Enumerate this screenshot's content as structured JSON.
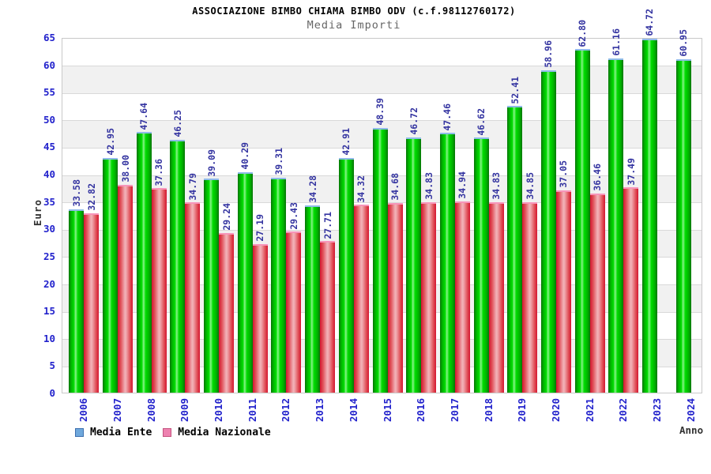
{
  "header": {
    "title": "ASSOCIAZIONE BIMBO CHIAMA BIMBO ODV (c.f.98112760172)",
    "subtitle": "Media Importi"
  },
  "axes": {
    "y_title": "Euro",
    "x_title": "Anno",
    "y_ticks": [
      0,
      5,
      10,
      15,
      20,
      25,
      30,
      35,
      40,
      45,
      50,
      55,
      60,
      65
    ]
  },
  "legend": {
    "items": [
      {
        "label": "Media Ente",
        "swatch_color": "#6fa8dc",
        "swatch_border": "#3d6fae"
      },
      {
        "label": "Media Nazionale",
        "swatch_color": "#ee82b0",
        "swatch_border": "#c4537e"
      }
    ]
  },
  "colors": {
    "bar_green_mid": "#00dc00",
    "bar_green_edge": "#067506",
    "bar_green_cap": "#8fbbe9",
    "bar_red_mid": "#efa2a9",
    "bar_red_edge": "#d41530",
    "bar_red_cap": "#f795ba",
    "tick_label_blue": "#2222cc",
    "value_label_navy": "#3333a0",
    "band_gray": "#f1f1f1",
    "grid_line": "#d9d9d9"
  },
  "chart_data": {
    "type": "bar",
    "title": "ASSOCIAZIONE BIMBO CHIAMA BIMBO ODV (c.f.98112760172)",
    "subtitle": "Media Importi",
    "xlabel": "Anno",
    "ylabel": "Euro",
    "ylim": [
      0,
      65
    ],
    "grid": true,
    "legend_position": "bottom-left",
    "background_bands": "alternating white / light-gray every 5 units",
    "categories": [
      "2006",
      "2007",
      "2008",
      "2009",
      "2010",
      "2011",
      "2012",
      "2013",
      "2014",
      "2015",
      "2016",
      "2017",
      "2018",
      "2019",
      "2020",
      "2021",
      "2022",
      "2023",
      "2024"
    ],
    "series": [
      {
        "name": "Media Ente",
        "values": [
          33.58,
          42.95,
          47.64,
          46.25,
          39.09,
          40.29,
          39.31,
          34.28,
          42.91,
          48.39,
          46.72,
          47.46,
          46.62,
          52.41,
          58.96,
          62.8,
          61.16,
          64.72,
          60.95
        ],
        "labels": [
          "33.58",
          "42.95",
          "47.64",
          "46.25",
          "39.09",
          "40.29",
          "39.31",
          "34.28",
          "42.91",
          "48.39",
          "46.72",
          "47.46",
          "46.62",
          "52.41",
          "58.96",
          "62.80",
          "61.16",
          "64.72",
          "60.95"
        ]
      },
      {
        "name": "Media Nazionale",
        "values": [
          32.82,
          38.0,
          37.36,
          34.79,
          29.24,
          27.19,
          29.43,
          27.71,
          34.32,
          34.68,
          34.83,
          34.94,
          34.83,
          34.85,
          37.05,
          36.46,
          37.49,
          null,
          null
        ],
        "labels": [
          "32.82",
          "38.00",
          "37.36",
          "34.79",
          "29.24",
          "27.19",
          "29.43",
          "27.71",
          "34.32",
          "34.68",
          "34.83",
          "34.94",
          "34.83",
          "34.85",
          "37.05",
          "36.46",
          "37.49",
          null,
          null
        ]
      }
    ]
  }
}
